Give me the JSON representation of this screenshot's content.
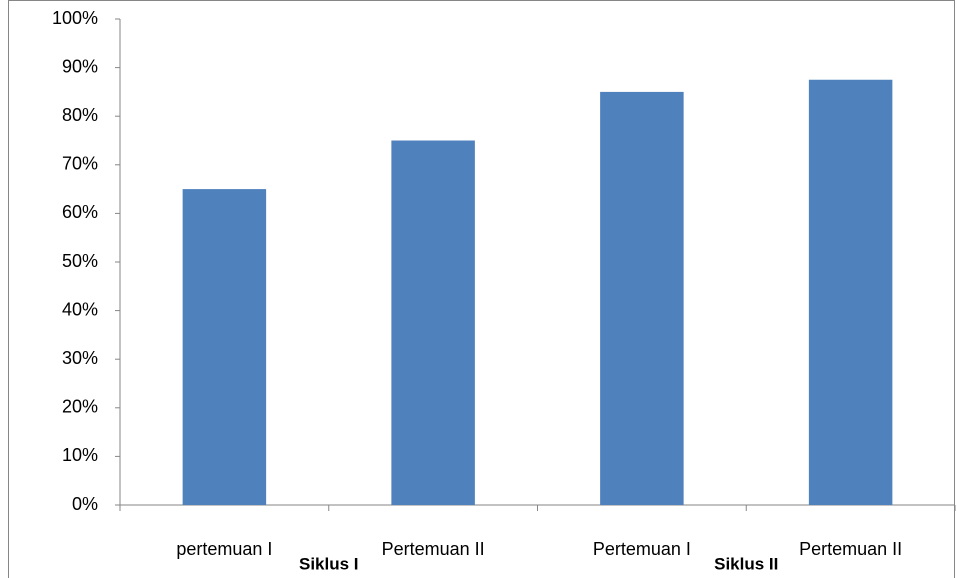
{
  "chart_data": {
    "type": "bar",
    "categories": [
      "pertemuan I",
      "Pertemuan II",
      "Pertemuan I",
      "Pertemuan II"
    ],
    "groups": [
      "Siklus I",
      "Siklus II"
    ],
    "values": [
      65,
      75,
      85,
      87.5
    ],
    "color": "#4f81bd",
    "ylim": [
      0,
      100
    ],
    "yticks": [
      {
        "value": 0,
        "label": "0%"
      },
      {
        "value": 10,
        "label": "10%"
      },
      {
        "value": 20,
        "label": "20%"
      },
      {
        "value": 30,
        "label": "30%"
      },
      {
        "value": 40,
        "label": "40%"
      },
      {
        "value": 50,
        "label": "50%"
      },
      {
        "value": 60,
        "label": "60%"
      },
      {
        "value": 70,
        "label": "70%"
      },
      {
        "value": 80,
        "label": "80%"
      },
      {
        "value": 90,
        "label": "90%"
      },
      {
        "value": 100,
        "label": "100%"
      }
    ],
    "grid": false
  }
}
